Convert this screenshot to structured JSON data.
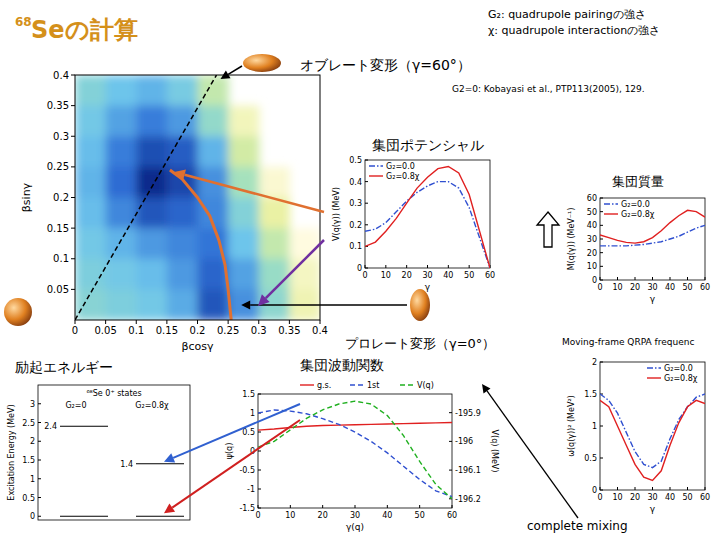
{
  "title": {
    "sup": "68",
    "text": "Seの計算"
  },
  "notes": [
    "G₂: quadrupole pairingの強さ",
    "χ: quadrupole interactionの強さ"
  ],
  "labels": {
    "oblate": "オブレート変形（γ=60°）",
    "prolate": "プロレート変形（γ=0°）",
    "reference": "G2=0: Kobayasi et al., PTP113(2005), 129.",
    "gamma": "γ",
    "mixing": "complete mixing"
  },
  "chart_data": [
    {
      "type": "heatmap",
      "x_label": "βcosγ",
      "y_label": "βsinγ",
      "x": [
        0.025,
        0.075,
        0.125,
        0.175,
        0.225,
        0.275,
        0.325,
        0.375
      ],
      "y": [
        0.375,
        0.325,
        0.275,
        0.225,
        0.175,
        0.125,
        0.075,
        0.025
      ],
      "cells": [
        [
          2.6,
          2.2,
          2.0,
          2.4,
          3.6,
          null,
          null,
          null
        ],
        [
          2.3,
          1.8,
          1.4,
          1.7,
          2.9,
          4.5,
          null,
          null
        ],
        [
          2.1,
          1.4,
          0.8,
          1.0,
          2.0,
          3.8,
          null,
          null
        ],
        [
          2.0,
          1.2,
          0.3,
          0.7,
          1.6,
          3.2,
          4.8,
          null
        ],
        [
          2.1,
          1.5,
          0.9,
          1.1,
          1.5,
          2.6,
          4.2,
          null
        ],
        [
          2.3,
          2.0,
          1.7,
          1.5,
          1.3,
          2.2,
          3.6,
          5.0
        ],
        [
          2.5,
          2.3,
          2.1,
          1.7,
          1.1,
          1.8,
          3.0,
          4.6
        ],
        [
          2.7,
          2.5,
          2.3,
          1.9,
          0.9,
          1.6,
          2.8,
          4.4
        ]
      ],
      "xlim": [
        0,
        0.4
      ],
      "ylim": [
        0,
        0.4
      ],
      "xticks": [
        0,
        0.05,
        0.1,
        0.15,
        0.2,
        0.25,
        0.3,
        0.35,
        0.4
      ],
      "yticks": [
        0.05,
        0.1,
        0.15,
        0.2,
        0.25,
        0.3,
        0.35,
        0.4
      ],
      "lines": [
        {
          "x": [
            0,
            0.231
          ],
          "y": [
            0,
            0.4
          ],
          "color": "#000000",
          "line_style": "dashed"
        }
      ],
      "path": {
        "x": [
          0.155,
          0.175,
          0.2,
          0.22,
          0.235,
          0.245,
          0.25,
          0.255
        ],
        "y": [
          0.245,
          0.23,
          0.2,
          0.17,
          0.13,
          0.09,
          0.05,
          0
        ],
        "color": "#e07030"
      }
    },
    {
      "type": "line",
      "title": "集団ポテンシャル",
      "x_label": "γ",
      "y_label": "V(q(γ)) (MeV)",
      "x": [
        0,
        5,
        10,
        15,
        20,
        25,
        30,
        35,
        40,
        45,
        50,
        55,
        60
      ],
      "xlim": [
        0,
        60
      ],
      "xticks": [
        0,
        10,
        20,
        30,
        40,
        50,
        60
      ],
      "ylim": [
        0,
        0.5
      ],
      "yticks": [
        0,
        0.1,
        0.2,
        0.3,
        0.4,
        0.5
      ],
      "legend": "upper left",
      "series": [
        {
          "name": "G₂=0.0",
          "color": "#3050d0",
          "line_style": "dashdot",
          "values": [
            0.17,
            0.18,
            0.21,
            0.26,
            0.31,
            0.35,
            0.38,
            0.4,
            0.4,
            0.37,
            0.28,
            0.14,
            0.0
          ]
        },
        {
          "name": "G₂=0.8χ",
          "color": "#e02020",
          "line_style": "solid",
          "values": [
            0.1,
            0.12,
            0.17,
            0.23,
            0.3,
            0.37,
            0.42,
            0.46,
            0.47,
            0.44,
            0.34,
            0.17,
            0.0
          ]
        }
      ]
    },
    {
      "type": "line",
      "title": "集団質量",
      "x_label": "γ",
      "y_label": "M(q(γ)) (MeV⁻¹)",
      "x": [
        0,
        5,
        10,
        15,
        20,
        25,
        30,
        35,
        40,
        45,
        50,
        55,
        60
      ],
      "xlim": [
        0,
        60
      ],
      "xticks": [
        0,
        10,
        20,
        30,
        40,
        50,
        60
      ],
      "ylim": [
        0,
        60
      ],
      "yticks": [
        0,
        10,
        20,
        30,
        40,
        50,
        60
      ],
      "legend": "upper left",
      "series": [
        {
          "name": "G₂=0.0",
          "color": "#3050d0",
          "line_style": "dashdot",
          "values": [
            25,
            25,
            25,
            25,
            25.5,
            26,
            27,
            28,
            30,
            32,
            35,
            38,
            40
          ]
        },
        {
          "name": "G₂=0.8χ",
          "color": "#e02020",
          "line_style": "solid",
          "values": [
            33,
            31,
            29,
            27.5,
            27,
            28,
            31,
            36,
            42,
            47,
            51,
            50,
            46
          ]
        }
      ]
    },
    {
      "type": "level",
      "title": "励起エネルギー",
      "subtitle": "⁶⁸Se 0⁺ states",
      "y_label": "Excitation Energy (MeV)",
      "ylim": [
        -0.1,
        3.5
      ],
      "yticks": [
        0,
        0.5,
        1,
        1.5,
        2,
        2.5,
        3
      ],
      "series": [
        {
          "name": "G₂=0",
          "color": "#000000",
          "values": [
            0,
            2.4
          ],
          "value_labels": [
            null,
            "2.4"
          ]
        },
        {
          "name": "G₂=0.8χ",
          "color": "#000000",
          "values": [
            0,
            1.4
          ],
          "value_labels": [
            null,
            "1.4"
          ]
        }
      ]
    },
    {
      "type": "line",
      "title": "集団波動関数",
      "x_label": "γ(q)",
      "y_label": "ψ(q)",
      "y2_label": "V(q) (MeV)",
      "x": [
        0,
        5,
        10,
        15,
        20,
        25,
        30,
        35,
        40,
        45,
        50,
        55,
        60
      ],
      "xlim": [
        0,
        60
      ],
      "xticks": [
        0,
        10,
        20,
        30,
        40,
        50,
        60
      ],
      "ylim": [
        -1.5,
        1.5
      ],
      "yticks": [
        -1.5,
        -1,
        -0.5,
        0,
        0.5,
        1,
        1.5
      ],
      "y2lim": [
        -196.232,
        -195.835
      ],
      "y2ticks": [
        -196.2,
        -196.1,
        -196,
        -195.9
      ],
      "legend": "top",
      "series": [
        {
          "name": "g.s.",
          "color": "#e02020",
          "line_style": "solid",
          "values": [
            0.55,
            0.58,
            0.62,
            0.65,
            0.67,
            0.68,
            0.69,
            0.7,
            0.71,
            0.72,
            0.73,
            0.74,
            0.75
          ]
        },
        {
          "name": "1st",
          "color": "#3050d0",
          "line_style": "dashed",
          "values": [
            1.0,
            1.08,
            1.05,
            0.98,
            0.85,
            0.7,
            0.5,
            0.25,
            -0.05,
            -0.4,
            -0.75,
            -1.05,
            -1.2
          ]
        },
        {
          "name": "V(q)",
          "color": "#20b020",
          "line_style": "dashed",
          "axis": "y2",
          "values": [
            -196.02,
            -196.0,
            -195.96,
            -195.92,
            -195.89,
            -195.87,
            -195.86,
            -195.87,
            -195.91,
            -195.98,
            -196.07,
            -196.15,
            -196.2
          ]
        }
      ]
    },
    {
      "type": "line",
      "title": "Moving-frame QRPA frequenc",
      "x_label": "γ",
      "y_label": "ω(q(γ))² (MeV²)",
      "x": [
        0,
        5,
        10,
        15,
        20,
        25,
        30,
        35,
        40,
        45,
        50,
        55,
        60
      ],
      "xlim": [
        0,
        60
      ],
      "xticks": [
        0,
        10,
        20,
        30,
        40,
        50,
        60
      ],
      "ylim": [
        0,
        2
      ],
      "yticks": [
        0,
        0.5,
        1,
        1.5,
        2
      ],
      "legend": "upper right",
      "series": [
        {
          "name": "G₂=0.0",
          "color": "#3050d0",
          "line_style": "dashdot",
          "values": [
            1.5,
            1.4,
            1.2,
            0.9,
            0.6,
            0.4,
            0.35,
            0.45,
            0.8,
            1.1,
            1.3,
            1.45,
            1.5
          ]
        },
        {
          "name": "G₂=0.8χ",
          "color": "#e02020",
          "line_style": "solid",
          "values": [
            1.4,
            1.3,
            1.0,
            0.7,
            0.4,
            0.2,
            0.15,
            0.3,
            0.7,
            1.05,
            1.3,
            1.4,
            1.35
          ]
        }
      ]
    }
  ]
}
